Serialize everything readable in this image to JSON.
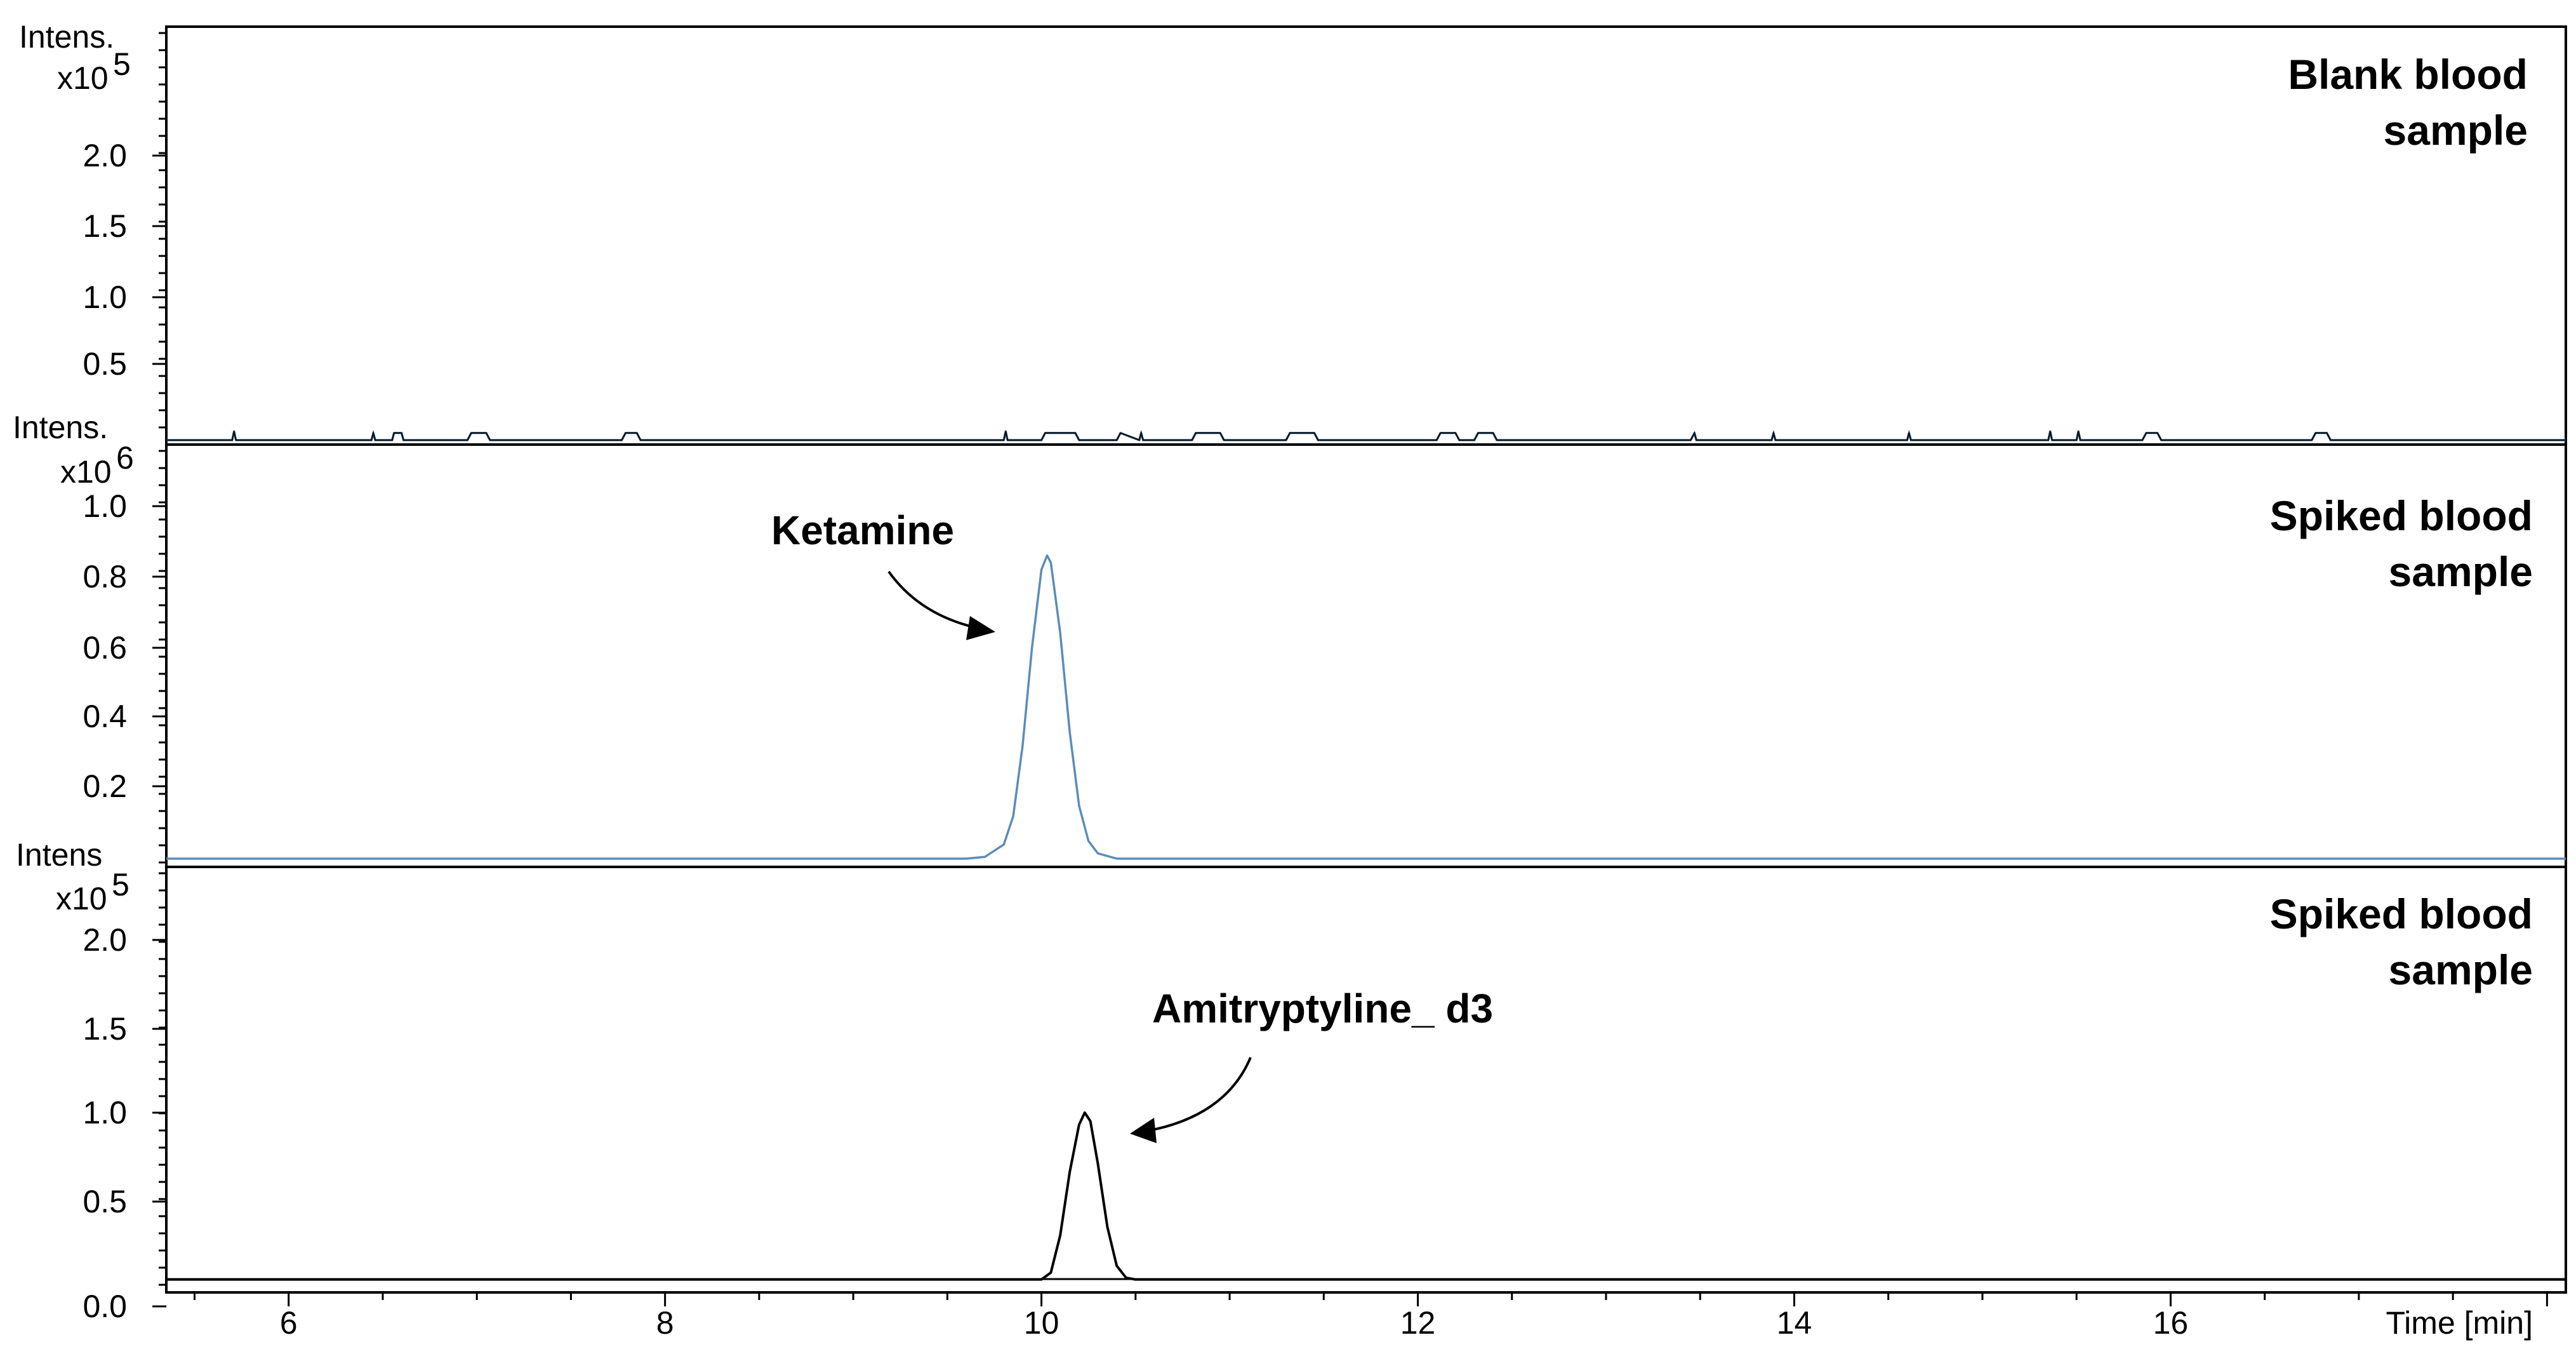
{
  "chart_data": [
    {
      "type": "line",
      "panel": "top",
      "ylabel": "Intens.",
      "yscale": "x10",
      "yscale_exp": "5",
      "yticks": [
        "0.5",
        "1.0",
        "1.5",
        "2.0"
      ],
      "ylim": [
        0,
        2.4
      ],
      "xlim": [
        5.35,
        18.1
      ],
      "sample_label": [
        "Blank blood",
        "sample"
      ],
      "color": "#5b8db8",
      "secondary_color": "#000000",
      "series": [
        {
          "x": [
            5.35,
            5.7,
            5.71,
            5.72,
            6.44,
            6.45,
            6.46,
            6.55,
            6.56,
            6.6,
            6.61,
            6.95,
            6.97,
            7.05,
            7.07,
            7.77,
            7.79,
            7.85,
            7.87,
            9.8,
            9.81,
            9.82,
            10.0,
            10.02,
            10.18,
            10.2,
            10.4,
            10.42,
            10.52,
            10.53,
            10.54,
            10.8,
            10.82,
            10.95,
            10.97,
            11.3,
            11.32,
            11.45,
            11.47,
            12.1,
            12.12,
            12.2,
            12.22,
            12.3,
            12.32,
            12.4,
            12.42,
            13.45,
            13.47,
            13.48,
            13.88,
            13.89,
            13.9,
            14.6,
            14.61,
            14.62,
            15.35,
            15.36,
            15.37,
            15.5,
            15.51,
            15.52,
            15.85,
            15.87,
            15.93,
            15.95,
            16.75,
            16.77,
            16.83,
            16.85,
            18.1
          ],
          "y": [
            0.02,
            0.02,
            0.07,
            0.02,
            0.02,
            0.06,
            0.02,
            0.02,
            0.06,
            0.06,
            0.02,
            0.02,
            0.06,
            0.06,
            0.02,
            0.02,
            0.06,
            0.06,
            0.02,
            0.02,
            0.07,
            0.02,
            0.02,
            0.06,
            0.06,
            0.02,
            0.02,
            0.06,
            0.02,
            0.06,
            0.02,
            0.02,
            0.06,
            0.06,
            0.02,
            0.02,
            0.06,
            0.06,
            0.02,
            0.02,
            0.06,
            0.06,
            0.02,
            0.02,
            0.06,
            0.06,
            0.02,
            0.02,
            0.06,
            0.02,
            0.02,
            0.06,
            0.02,
            0.02,
            0.06,
            0.02,
            0.02,
            0.07,
            0.02,
            0.02,
            0.07,
            0.02,
            0.02,
            0.06,
            0.06,
            0.02,
            0.02,
            0.06,
            0.06,
            0.02,
            0.02
          ]
        }
      ]
    },
    {
      "type": "line",
      "panel": "middle",
      "ylabel": "Intens.",
      "yscale": "x10",
      "yscale_exp": "6",
      "yticks": [
        "0.2",
        "0.4",
        "0.6",
        "0.8",
        "1.0"
      ],
      "ylim": [
        0,
        1.1
      ],
      "xlim": [
        5.35,
        18.1
      ],
      "sample_label": [
        "Spiked blood",
        "sample"
      ],
      "color": "#5b8db8",
      "series": [
        {
          "name": "Ketamine",
          "x": [
            5.35,
            9.6,
            9.7,
            9.8,
            9.85,
            9.9,
            9.95,
            10.0,
            10.03,
            10.05,
            10.1,
            10.15,
            10.2,
            10.25,
            10.3,
            10.4,
            10.6,
            18.1
          ],
          "y": [
            0.0,
            0.0,
            0.005,
            0.04,
            0.12,
            0.32,
            0.6,
            0.82,
            0.86,
            0.84,
            0.64,
            0.36,
            0.15,
            0.05,
            0.015,
            0.0,
            0.0,
            0.0
          ]
        }
      ],
      "annotation": "Ketamine"
    },
    {
      "type": "line",
      "panel": "bottom",
      "ylabel": "Intens",
      "yscale": "x10",
      "yscale_exp": "5",
      "yticks": [
        "0.0",
        "0.5",
        "1.0",
        "1.5",
        "2.0"
      ],
      "ylim": [
        0,
        2.4
      ],
      "xlim": [
        5.35,
        18.1
      ],
      "xticks": [
        "6",
        "8",
        "10",
        "12",
        "14",
        "16"
      ],
      "xlabel": "Time [min]",
      "sample_label": [
        "Spiked blood",
        "sample"
      ],
      "color": "#000000",
      "series": [
        {
          "name": "Amitryptyline_ d3",
          "x": [
            5.35,
            10.0,
            10.05,
            10.1,
            10.15,
            10.2,
            10.23,
            10.26,
            10.3,
            10.35,
            10.4,
            10.45,
            10.5,
            18.1
          ],
          "y": [
            0.02,
            0.02,
            0.06,
            0.28,
            0.65,
            0.93,
            1.0,
            0.95,
            0.7,
            0.33,
            0.1,
            0.03,
            0.02,
            0.02
          ]
        }
      ],
      "annotation": "Amitryptyline_ d3"
    }
  ]
}
